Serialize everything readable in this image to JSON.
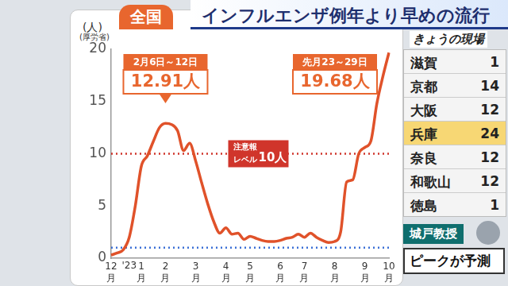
{
  "header": {
    "tab": "全国",
    "title": "インフルエンザ例年より早めの流行",
    "logo": "きょうの現場"
  },
  "chart_data": {
    "type": "line",
    "y_label": "(人)",
    "source": "(厚労省)",
    "categories": [
      "12月",
      null,
      null,
      null,
      null,
      "1月",
      null,
      null,
      null,
      "2月",
      null,
      null,
      null,
      null,
      "3月",
      null,
      null,
      null,
      null,
      "4月",
      null,
      null,
      null,
      "5月",
      null,
      null,
      null,
      null,
      "6月",
      null,
      null,
      null,
      "7月",
      null,
      null,
      null,
      null,
      "8月",
      null,
      null,
      null,
      null,
      "9月",
      null,
      null,
      null,
      "10月"
    ],
    "values": [
      0.3,
      0.5,
      0.8,
      2.0,
      5.0,
      8.8,
      9.8,
      11.2,
      12.5,
      12.91,
      12.8,
      12.2,
      10.3,
      11.0,
      9.3,
      7.2,
      5.2,
      3.5,
      2.4,
      2.9,
      2.3,
      2.4,
      1.8,
      2.1,
      1.9,
      1.7,
      1.6,
      1.6,
      1.7,
      1.9,
      2.0,
      2.3,
      2.0,
      2.4,
      2.0,
      1.7,
      1.5,
      1.6,
      2.5,
      7.3,
      7.5,
      10.0,
      10.6,
      11.2,
      14.8,
      17.4,
      19.68
    ],
    "color": "#e0522a",
    "ylim": [
      0,
      20
    ],
    "yticks": [
      0,
      5,
      10,
      15,
      20
    ],
    "grid": false,
    "marker": "none",
    "line_style": "solid",
    "annotations": [
      {
        "text": "'23",
        "category": "1月"
      },
      {
        "text": "2月6日～12日",
        "value": 12.91,
        "value_label": "12.91人"
      },
      {
        "text": "先月23～29日",
        "value": 19.68,
        "value_label": "19.68人"
      }
    ],
    "reference_lines": [
      {
        "value": 10,
        "text": [
          "注意報",
          "レベル"
        ],
        "value_label": "10人",
        "color": "#d0352b",
        "line_style": "dotted"
      },
      {
        "value": 1,
        "color": "#3b6fd6",
        "line_style": "dotted"
      }
    ]
  },
  "table": {
    "rows": [
      [
        "滋賀",
        "1"
      ],
      [
        "京都",
        "14"
      ],
      [
        "大阪",
        "12"
      ],
      [
        "兵庫",
        "24"
      ],
      [
        "奈良",
        "12"
      ],
      [
        "和歌山",
        "12"
      ],
      [
        "徳島",
        "1"
      ]
    ],
    "highlight": "兵庫"
  },
  "expert": {
    "name": "城戸教授",
    "caption": "ピークが予測"
  }
}
